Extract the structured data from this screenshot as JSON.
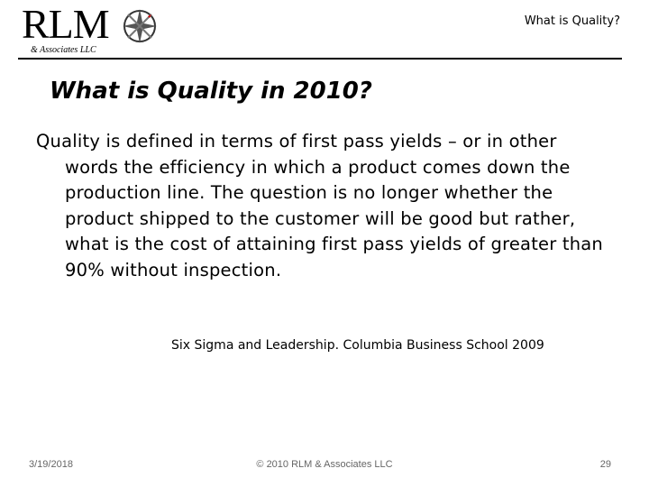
{
  "header": {
    "logo": "RLM",
    "logo_subtitle": "& Associates LLC",
    "title": "What is Quality?"
  },
  "slide": {
    "title": "What is Quality in 2010?",
    "body": "Quality is defined in terms of first pass yields – or in other words the efficiency in which a product comes down the production line. The question is no longer whether the product shipped to the customer will be good but rather, what is the cost of attaining first pass yields of greater than 90% without inspection.",
    "citation": "Six Sigma and Leadership. Columbia Business School 2009"
  },
  "footer": {
    "date": "3/19/2018",
    "copyright": "© 2010 RLM & Associates LLC",
    "page": "29"
  }
}
